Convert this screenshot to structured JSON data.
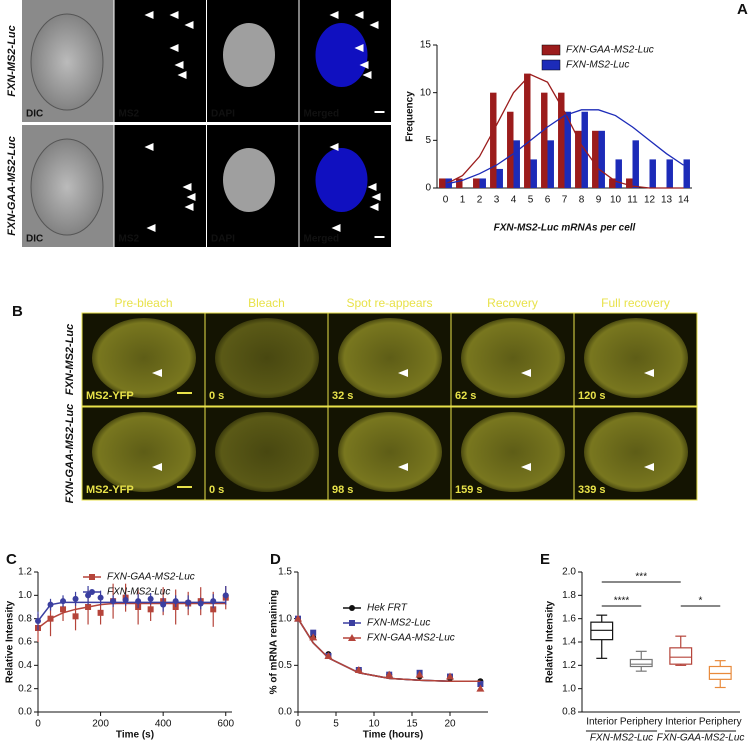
{
  "panel_labels": [
    "A",
    "B",
    "C",
    "D",
    "E"
  ],
  "microscopy_a": {
    "rows": [
      {
        "label": "FXN-MS2-Luc",
        "channels": [
          "DIC",
          "MS2",
          "DAPI",
          "Merged"
        ]
      },
      {
        "label": "FXN-GAA-MS2-Luc",
        "channels": [
          "DIC",
          "MS2",
          "DAPI",
          "Merged"
        ]
      }
    ]
  },
  "microscopy_b": {
    "columns": [
      "Pre-bleach",
      "Bleach",
      "Spot re-appears",
      "Recovery",
      "Full recovery"
    ],
    "rows": [
      {
        "label": "FXN-MS2-Luc",
        "tags": [
          "MS2-YFP",
          "0 s",
          "32 s",
          "62 s",
          "120 s"
        ]
      },
      {
        "label": "FXN-GAA-MS2-Luc",
        "tags": [
          "MS2-YFP",
          "0 s",
          "98 s",
          "159 s",
          "339 s"
        ]
      }
    ]
  },
  "chart_data": [
    {
      "type": "bar",
      "x_label": "FXN-MS2-Luc mRNAs per cell",
      "y_label": "Frequency",
      "categories": [
        "0",
        "1",
        "2",
        "3",
        "4",
        "5",
        "6",
        "7",
        "8",
        "9",
        "10",
        "11",
        "12",
        "13",
        "14"
      ],
      "ylim": [
        0,
        15
      ],
      "yticks": [
        0,
        5,
        10,
        15
      ],
      "legend": "upper right",
      "series": [
        {
          "name": "FXN-GAA-MS2-Luc",
          "color": "#9b1c1c",
          "values": [
            1,
            1,
            1,
            10,
            8,
            12,
            10,
            10,
            6,
            6,
            1,
            1,
            0,
            0,
            0
          ],
          "fit": [
            0.4,
            1.3,
            3.3,
            6.6,
            10,
            11.9,
            11.1,
            8,
            4.5,
            2,
            0.7,
            0.2,
            0,
            0,
            0
          ]
        },
        {
          "name": "FXN-MS2-Luc",
          "color": "#1c2bb8",
          "values": [
            1,
            0,
            1,
            2,
            5,
            3,
            5,
            8,
            8,
            6,
            3,
            5,
            3,
            3,
            3
          ],
          "fit": [
            0.4,
            0.8,
            1.5,
            2.4,
            3.6,
            5,
            6.4,
            7.6,
            8.2,
            8.2,
            7.6,
            6.4,
            5,
            3.6,
            2.4
          ]
        }
      ]
    },
    {
      "type": "line",
      "x_label": "Time (s)",
      "y_label": "Relative Intensity",
      "x": [
        0,
        40,
        80,
        120,
        160,
        200,
        240,
        280,
        320,
        360,
        400,
        440,
        480,
        520,
        560,
        600
      ],
      "xlim": [
        0,
        620
      ],
      "xticks": [
        0,
        200,
        400,
        600
      ],
      "ylim": [
        0,
        1.2
      ],
      "yticks": [
        {
          "value": 0,
          "label": "0.0"
        },
        0.2,
        0.4,
        0.6,
        0.8,
        {
          "value": 1,
          "label": "1.0"
        },
        1.2
      ],
      "legend": "upper left",
      "series": [
        {
          "name": "FXN-GAA-MS2-Luc",
          "color": "#b5443a",
          "marker": "square",
          "values": [
            0.72,
            0.8,
            0.88,
            0.82,
            0.9,
            0.85,
            0.95,
            0.98,
            0.9,
            0.88,
            0.95,
            0.9,
            0.93,
            0.95,
            0.88,
            0.98
          ],
          "errors": [
            0.12,
            0.15,
            0.1,
            0.12,
            0.15,
            0.1,
            0.15,
            0.12,
            0.15,
            0.1,
            0.12,
            0.15,
            0.1,
            0.12,
            0.15,
            0.1
          ],
          "fit": [
            0.72,
            0.8,
            0.85,
            0.88,
            0.9,
            0.92,
            0.93,
            0.93,
            0.93,
            0.93,
            0.93,
            0.93,
            0.93,
            0.93,
            0.93,
            0.93
          ]
        },
        {
          "name": "FXN-MS2-Luc",
          "color": "#3b3fa0",
          "marker": "circle",
          "values": [
            0.78,
            0.92,
            0.95,
            0.97,
            1.0,
            0.98,
            0.95,
            0.96,
            0.95,
            0.97,
            0.92,
            0.95,
            0.94,
            0.93,
            0.95,
            1.0
          ],
          "errors": [
            0.08,
            0.05,
            0.05,
            0.06,
            0.08,
            0.06,
            0.05,
            0.05,
            0.06,
            0.05,
            0.06,
            0.05,
            0.06,
            0.05,
            0.06,
            0.08
          ],
          "fit": [
            0.78,
            0.92,
            0.94,
            0.94,
            0.94,
            0.94,
            0.94,
            0.94,
            0.94,
            0.94,
            0.94,
            0.94,
            0.94,
            0.94,
            0.94,
            0.94
          ]
        }
      ]
    },
    {
      "type": "line",
      "x_label": "Time (hours)",
      "y_label": "% of mRNA remaining",
      "x": [
        0,
        2,
        4,
        8,
        12,
        16,
        20,
        24
      ],
      "xlim": [
        0,
        25
      ],
      "xticks": [
        0,
        5,
        10,
        15,
        20
      ],
      "ylim": [
        0,
        1.5
      ],
      "yticks": [
        {
          "value": 0,
          "label": "0.0"
        },
        0.5,
        {
          "value": 1,
          "label": "1.0"
        },
        1.5
      ],
      "legend": "center right",
      "series": [
        {
          "name": "Hek FRT",
          "color": "#111111",
          "marker": "circle",
          "values": [
            1.0,
            0.8,
            0.62,
            0.45,
            0.4,
            0.38,
            0.36,
            0.33
          ],
          "fit": [
            1,
            0.74,
            0.58,
            0.42,
            0.36,
            0.34,
            0.33,
            0.33
          ]
        },
        {
          "name": "FXN-MS2-Luc",
          "color": "#3b3fa0",
          "marker": "square",
          "values": [
            1.0,
            0.85,
            0.6,
            0.45,
            0.4,
            0.42,
            0.38,
            0.3
          ],
          "fit": [
            1,
            0.74,
            0.58,
            0.42,
            0.36,
            0.34,
            0.33,
            0.33
          ]
        },
        {
          "name": "FXN-GAA-MS2-Luc",
          "color": "#b5443a",
          "marker": "triangle",
          "values": [
            1.0,
            0.8,
            0.6,
            0.45,
            0.4,
            0.4,
            0.38,
            0.25
          ],
          "fit": [
            1,
            0.74,
            0.58,
            0.42,
            0.36,
            0.34,
            0.33,
            0.33
          ]
        }
      ]
    },
    {
      "type": "box",
      "y_label": "Relative Intensity",
      "categories": [
        "Interior",
        "Periphery",
        "Interior",
        "Periphery"
      ],
      "groups": [
        "FXN-MS2-Luc",
        "FXN-GAA-MS2-Luc"
      ],
      "ylim": [
        0.8,
        2.0
      ],
      "yticks": [
        0.8,
        {
          "value": 1,
          "label": "1.0"
        },
        1.2,
        1.4,
        1.6,
        1.8,
        {
          "value": 2,
          "label": "2.0"
        }
      ],
      "boxes": [
        {
          "color": "#111111",
          "min": 1.26,
          "q1": 1.42,
          "median": 1.5,
          "q3": 1.57,
          "max": 1.63
        },
        {
          "color": "#777777",
          "min": 1.15,
          "q1": 1.19,
          "median": 1.21,
          "q3": 1.25,
          "max": 1.32
        },
        {
          "color": "#b5443a",
          "min": 1.2,
          "q1": 1.21,
          "median": 1.27,
          "q3": 1.35,
          "max": 1.45
        },
        {
          "color": "#e88a3c",
          "min": 1.01,
          "q1": 1.08,
          "median": 1.13,
          "q3": 1.19,
          "max": 1.24
        }
      ],
      "comparisons": [
        {
          "label": "****",
          "between": [
            0,
            1
          ]
        },
        {
          "label": "***",
          "between": [
            0,
            2
          ]
        },
        {
          "label": "*",
          "between": [
            2,
            3
          ]
        }
      ]
    }
  ]
}
